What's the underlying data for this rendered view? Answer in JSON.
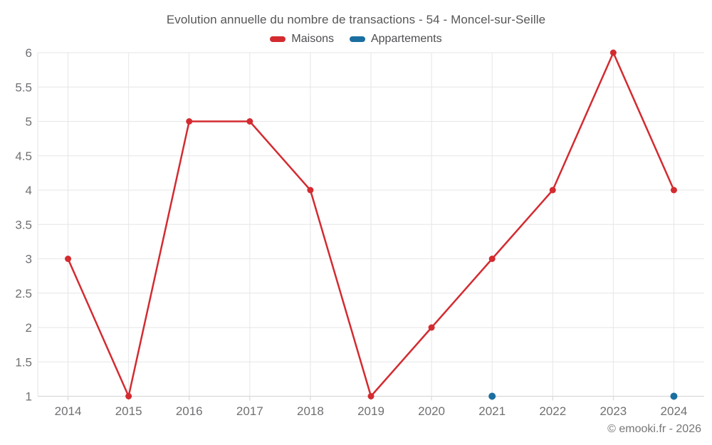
{
  "header": {
    "title": "Evolution annuelle du nombre de transactions - 54 - Moncel-sur-Seille"
  },
  "legend": {
    "items": [
      {
        "label": "Maisons",
        "color": "#d32b30"
      },
      {
        "label": "Appartements",
        "color": "#1b6fa0"
      }
    ]
  },
  "footer": {
    "copyright": "© emooki.fr - 2026"
  },
  "chart_data": {
    "type": "line",
    "title": "Evolution annuelle du nombre de transactions - 54 - Moncel-sur-Seille",
    "categories": [
      "2014",
      "2015",
      "2016",
      "2017",
      "2018",
      "2019",
      "2020",
      "2021",
      "2022",
      "2023",
      "2024"
    ],
    "series": [
      {
        "name": "Maisons",
        "color": "#d32b30",
        "values": [
          3,
          1,
          5,
          5,
          4,
          1,
          2,
          3,
          4,
          6,
          4
        ]
      },
      {
        "name": "Appartements",
        "color": "#1b6fa0",
        "values": [
          null,
          null,
          null,
          null,
          null,
          null,
          null,
          1,
          null,
          null,
          1
        ]
      }
    ],
    "xlabel": "",
    "ylabel": "",
    "ylim": [
      1,
      6
    ],
    "ytick_step": 0.5,
    "grid": true,
    "legend_position": "top",
    "gridline_color": "#e6e6e6",
    "axis_line_color": "#d2d2d2",
    "tick_label_color": "#707074"
  }
}
